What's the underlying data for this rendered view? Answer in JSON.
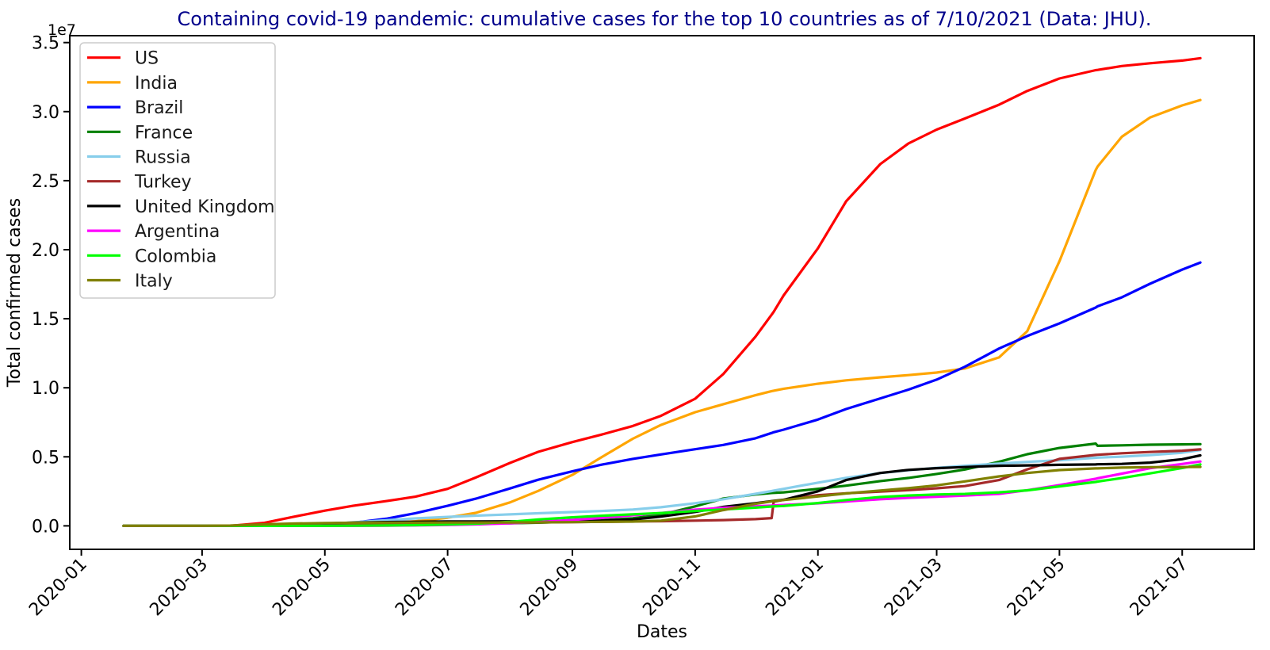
{
  "page": {
    "background_color": "#ffffff"
  },
  "chart_data": {
    "type": "line",
    "title": "Containing covid-19 pandemic: cumulative cases for the top 10 countries as of 7/10/2021 (Data: JHU).",
    "title_color": "#00008b",
    "xlabel": "Dates",
    "ylabel": "Total confirmed cases",
    "values_unit": "millions of cumulative confirmed cases",
    "grid": false,
    "legend": {
      "location": "upper left"
    },
    "y_axis": {
      "offset_text": "1e7",
      "ylim_millions": [
        -1.7,
        35.5
      ],
      "ticks": [
        {
          "label": "0.0",
          "value": 0
        },
        {
          "label": "0.5",
          "value": 5
        },
        {
          "label": "1.0",
          "value": 10
        },
        {
          "label": "1.5",
          "value": 15
        },
        {
          "label": "2.0",
          "value": 20
        },
        {
          "label": "2.5",
          "value": 25
        },
        {
          "label": "3.0",
          "value": 30
        },
        {
          "label": "3.5",
          "value": 35
        }
      ]
    },
    "x_axis": {
      "start_date": "2020-01-22",
      "end_date": "2021-07-10",
      "tick_rotation_deg": 45,
      "ticks": [
        {
          "label": "2020-01",
          "date": "2020-01-01"
        },
        {
          "label": "2020-03",
          "date": "2020-03-01"
        },
        {
          "label": "2020-05",
          "date": "2020-05-01"
        },
        {
          "label": "2020-07",
          "date": "2020-07-01"
        },
        {
          "label": "2020-09",
          "date": "2020-09-01"
        },
        {
          "label": "2020-11",
          "date": "2020-11-01"
        },
        {
          "label": "2021-01",
          "date": "2021-01-01"
        },
        {
          "label": "2021-03",
          "date": "2021-03-01"
        },
        {
          "label": "2021-05",
          "date": "2021-05-01"
        },
        {
          "label": "2021-07",
          "date": "2021-07-01"
        }
      ]
    },
    "dates": [
      "2020-01-22",
      "2020-02-15",
      "2020-03-01",
      "2020-03-15",
      "2020-04-01",
      "2020-04-15",
      "2020-05-01",
      "2020-05-15",
      "2020-06-01",
      "2020-06-15",
      "2020-07-01",
      "2020-07-15",
      "2020-08-01",
      "2020-08-15",
      "2020-09-01",
      "2020-09-15",
      "2020-10-01",
      "2020-10-15",
      "2020-11-01",
      "2020-11-15",
      "2020-12-01",
      "2020-12-09",
      "2020-12-10",
      "2020-12-15",
      "2021-01-01",
      "2021-01-15",
      "2021-02-01",
      "2021-02-15",
      "2021-03-01",
      "2021-03-15",
      "2021-04-01",
      "2021-04-15",
      "2021-05-01",
      "2021-05-19",
      "2021-05-20",
      "2021-06-01",
      "2021-06-15",
      "2021-07-01",
      "2021-07-10"
    ],
    "series": [
      {
        "name": "US",
        "color": "#ff0000",
        "values": [
          0,
          2e-05,
          8e-05,
          0.003,
          0.22,
          0.64,
          1.1,
          1.45,
          1.81,
          2.11,
          2.68,
          3.5,
          4.56,
          5.36,
          6.07,
          6.59,
          7.23,
          7.97,
          9.21,
          11.0,
          13.7,
          15.3,
          15.5,
          16.7,
          20.1,
          23.5,
          26.2,
          27.7,
          28.7,
          29.5,
          30.5,
          31.5,
          32.4,
          33.0,
          33.02,
          33.3,
          33.5,
          33.7,
          33.87
        ]
      },
      {
        "name": "India",
        "color": "#ffa500",
        "values": [
          0,
          0,
          0,
          0.0001,
          0.002,
          0.012,
          0.035,
          0.085,
          0.19,
          0.33,
          0.59,
          0.94,
          1.7,
          2.53,
          3.69,
          4.93,
          6.31,
          7.31,
          8.23,
          8.81,
          9.46,
          9.76,
          9.79,
          9.93,
          10.29,
          10.54,
          10.76,
          10.92,
          11.1,
          11.4,
          12.2,
          14.1,
          19.16,
          25.77,
          26.03,
          28.18,
          29.57,
          30.45,
          30.84
        ]
      },
      {
        "name": "Brazil",
        "color": "#0000ff",
        "values": [
          0,
          0,
          0,
          0.0002,
          0.006,
          0.028,
          0.092,
          0.22,
          0.53,
          0.92,
          1.45,
          1.97,
          2.71,
          3.34,
          3.95,
          4.42,
          4.85,
          5.17,
          5.55,
          5.86,
          6.34,
          6.73,
          6.78,
          6.97,
          7.7,
          8.46,
          9.23,
          9.87,
          10.59,
          11.52,
          12.84,
          13.75,
          14.66,
          15.81,
          15.9,
          16.55,
          17.53,
          18.56,
          19.07
        ]
      },
      {
        "name": "France",
        "color": "#008000",
        "values": [
          0,
          1e-05,
          0.0001,
          0.005,
          0.057,
          0.103,
          0.13,
          0.14,
          0.151,
          0.157,
          0.165,
          0.172,
          0.186,
          0.23,
          0.3,
          0.4,
          0.55,
          0.81,
          1.41,
          1.98,
          2.27,
          2.38,
          2.39,
          2.43,
          2.68,
          2.91,
          3.24,
          3.47,
          3.76,
          4.08,
          4.64,
          5.19,
          5.64,
          5.96,
          5.8,
          5.83,
          5.88,
          5.9,
          5.92
        ]
      },
      {
        "name": "Russia",
        "color": "#87ceeb",
        "values": [
          0,
          0,
          0,
          0.0001,
          0.0027,
          0.025,
          0.106,
          0.25,
          0.41,
          0.54,
          0.65,
          0.74,
          0.83,
          0.91,
          1.0,
          1.07,
          1.18,
          1.35,
          1.64,
          1.93,
          2.32,
          2.52,
          2.55,
          2.68,
          3.13,
          3.48,
          3.82,
          4.03,
          4.2,
          4.35,
          4.51,
          4.63,
          4.75,
          4.93,
          4.94,
          5.01,
          5.12,
          5.3,
          5.49
        ]
      },
      {
        "name": "Turkey",
        "color": "#a52a2a",
        "values": [
          0,
          0,
          0,
          1e-05,
          0.014,
          0.065,
          0.12,
          0.14,
          0.16,
          0.18,
          0.2,
          0.21,
          0.23,
          0.25,
          0.27,
          0.29,
          0.32,
          0.34,
          0.38,
          0.42,
          0.49,
          0.56,
          1.75,
          1.89,
          2.22,
          2.36,
          2.48,
          2.59,
          2.72,
          2.88,
          3.32,
          4.09,
          4.85,
          5.14,
          5.15,
          5.26,
          5.35,
          5.44,
          5.54
        ]
      },
      {
        "name": "United Kingdom",
        "color": "#000000",
        "values": [
          0,
          1e-05,
          4e-05,
          0.0011,
          0.03,
          0.094,
          0.178,
          0.234,
          0.277,
          0.296,
          0.313,
          0.318,
          0.325,
          0.335,
          0.345,
          0.374,
          0.46,
          0.67,
          1.01,
          1.37,
          1.64,
          1.79,
          1.81,
          1.89,
          2.5,
          3.32,
          3.83,
          4.05,
          4.18,
          4.26,
          4.35,
          4.38,
          4.42,
          4.45,
          4.46,
          4.49,
          4.58,
          4.83,
          5.1
        ]
      },
      {
        "name": "Argentina",
        "color": "#ff00ff",
        "values": [
          0,
          0,
          0,
          5e-05,
          0.0012,
          0.0025,
          0.0044,
          0.0074,
          0.016,
          0.032,
          0.064,
          0.11,
          0.19,
          0.28,
          0.43,
          0.57,
          0.77,
          0.93,
          1.17,
          1.31,
          1.42,
          1.47,
          1.48,
          1.51,
          1.63,
          1.77,
          1.93,
          2.03,
          2.11,
          2.19,
          2.32,
          2.58,
          2.95,
          3.41,
          3.45,
          3.78,
          4.17,
          4.48,
          4.66
        ]
      },
      {
        "name": "Colombia",
        "color": "#00ff00",
        "values": [
          0,
          0,
          0,
          0,
          0.001,
          0.003,
          0.0067,
          0.013,
          0.03,
          0.05,
          0.095,
          0.16,
          0.29,
          0.46,
          0.62,
          0.73,
          0.84,
          0.93,
          1.08,
          1.19,
          1.32,
          1.4,
          1.41,
          1.44,
          1.65,
          1.87,
          2.09,
          2.2,
          2.27,
          2.31,
          2.43,
          2.57,
          2.86,
          3.18,
          3.21,
          3.46,
          3.8,
          4.19,
          4.45
        ]
      },
      {
        "name": "Italy",
        "color": "#808000",
        "values": [
          0,
          3e-06,
          0.0017,
          0.025,
          0.11,
          0.165,
          0.207,
          0.223,
          0.233,
          0.237,
          0.241,
          0.243,
          0.247,
          0.253,
          0.269,
          0.29,
          0.31,
          0.38,
          0.68,
          1.14,
          1.6,
          1.77,
          1.79,
          1.87,
          2.13,
          2.35,
          2.56,
          2.73,
          2.93,
          3.22,
          3.58,
          3.83,
          4.04,
          4.16,
          4.16,
          4.22,
          4.25,
          4.26,
          4.27
        ]
      }
    ]
  }
}
